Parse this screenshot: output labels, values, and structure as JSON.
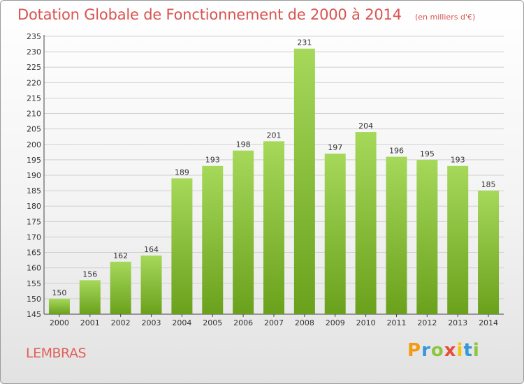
{
  "title": "Dotation Globale de Fonctionnement de 2000 à 2014",
  "unit": "(en milliers d'€)",
  "commune": "LEMBRAS",
  "brand": {
    "letters": [
      "P",
      "r",
      "o",
      "x",
      "i",
      "t",
      "i"
    ],
    "colors": [
      "#f39c12",
      "#3498db",
      "#8cc63f",
      "#e74c3c",
      "#f1c40f",
      "#3498db",
      "#8cc63f"
    ]
  },
  "colors": {
    "title": "#d9534f",
    "bar_light": "#a6d85a",
    "bar_dark": "#6aa11c",
    "grid": "#d0d0d0"
  },
  "chart_data": {
    "type": "bar",
    "categories": [
      "2000",
      "2001",
      "2002",
      "2003",
      "2004",
      "2005",
      "2006",
      "2007",
      "2008",
      "2009",
      "2010",
      "2011",
      "2012",
      "2013",
      "2014"
    ],
    "values": [
      150,
      156,
      162,
      164,
      189,
      193,
      198,
      201,
      231,
      197,
      204,
      196,
      195,
      193,
      185
    ],
    "title": "Dotation Globale de Fonctionnement de 2000 à 2014",
    "ylim": [
      145,
      235
    ],
    "yticks": [
      145,
      150,
      155,
      160,
      165,
      170,
      175,
      180,
      185,
      190,
      195,
      200,
      205,
      210,
      215,
      220,
      225,
      230,
      235
    ],
    "grid": true,
    "data_labels": true
  }
}
